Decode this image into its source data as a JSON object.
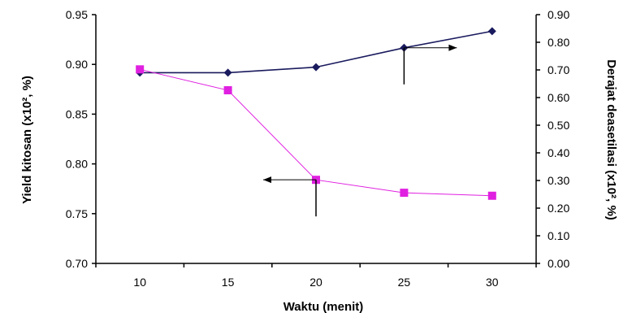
{
  "chart_data": {
    "type": "line",
    "title": "",
    "xlabel": "Waktu (menit)",
    "ylabel_left": "Yield kitosan (x10², %)",
    "ylabel_right": "Derajat deasetilasi (x10², %)",
    "x": [
      10,
      15,
      20,
      25,
      30
    ],
    "x_ticks": [
      "10",
      "15",
      "20",
      "25",
      "30"
    ],
    "xlim": [
      7.5,
      32.5
    ],
    "ylim_left": [
      0.7,
      0.95
    ],
    "ylim_right": [
      0.0,
      0.9
    ],
    "y_ticks_left": [
      "0.70",
      "0.75",
      "0.80",
      "0.85",
      "0.90",
      "0.95"
    ],
    "y_ticks_right": [
      "0.00",
      "0.10",
      "0.20",
      "0.30",
      "0.40",
      "0.50",
      "0.60",
      "0.70",
      "0.80",
      "0.90"
    ],
    "grid": false,
    "legend": "none",
    "series": [
      {
        "axis": "right",
        "color": "#1a1a5e",
        "marker": "diamond",
        "values": [
          0.69,
          0.69,
          0.71,
          0.78,
          0.84
        ]
      },
      {
        "axis": "left",
        "color": "#e020e0",
        "marker": "square",
        "values": [
          0.895,
          0.874,
          0.784,
          0.771,
          0.768
        ]
      }
    ],
    "annotations": [
      {
        "type": "arrow",
        "points_to": "left",
        "x_value": 20,
        "y_value_left": 0.784,
        "note_axis": "left"
      },
      {
        "type": "arrow",
        "points_to": "right",
        "x_value": 25,
        "y_value_right": 0.78,
        "note_axis": "right"
      }
    ]
  }
}
